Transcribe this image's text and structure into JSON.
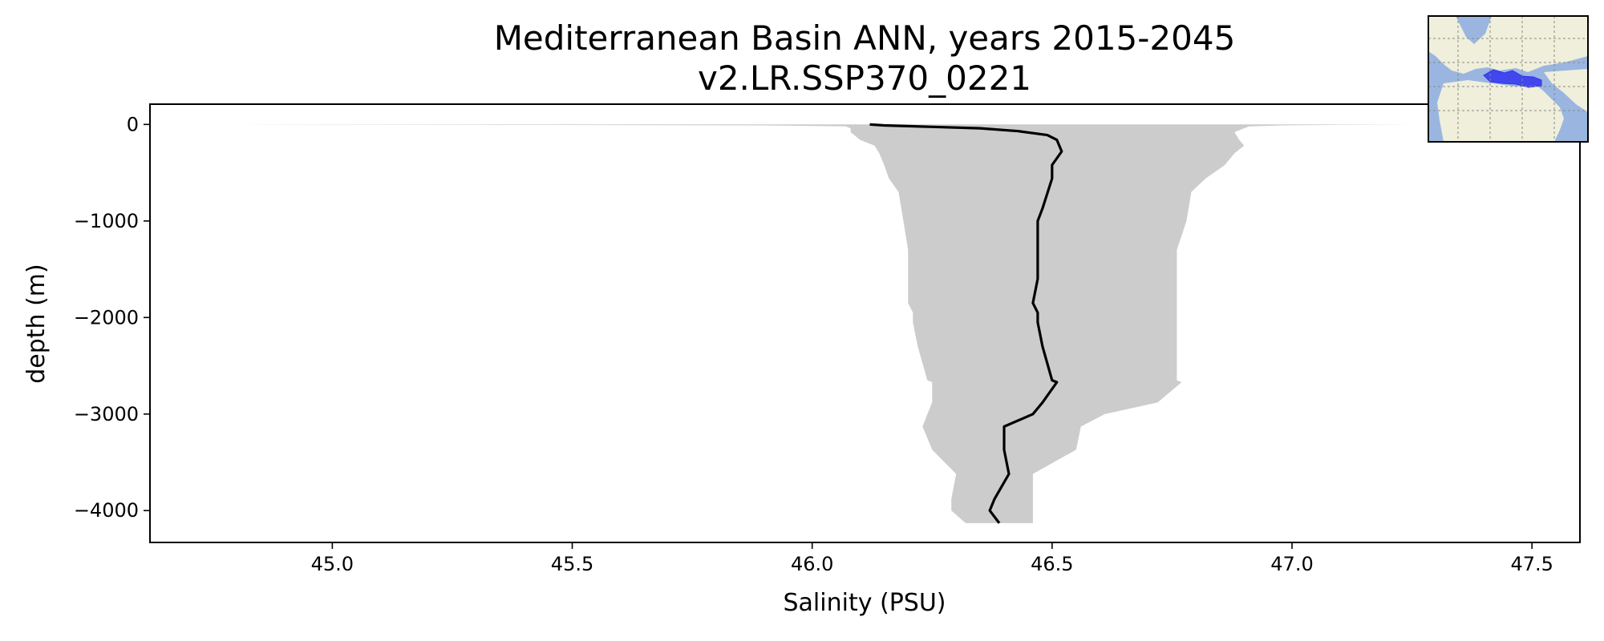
{
  "chart_data": {
    "type": "line",
    "title": "Mediterranean Basin ANN, years 2015-2045",
    "subtitle": "v2.LR.SSP370_0221",
    "xlabel": "Salinity (PSU)",
    "ylabel": "depth (m)",
    "xlim": [
      44.62,
      47.6
    ],
    "ylim": [
      -4330,
      210
    ],
    "xticks": [
      45.0,
      45.5,
      46.0,
      46.5,
      47.0,
      47.5
    ],
    "xtick_labels": [
      "45.0",
      "45.5",
      "46.0",
      "46.5",
      "47.0",
      "47.5"
    ],
    "yticks": [
      0,
      -1000,
      -2000,
      -3000,
      -4000
    ],
    "ytick_labels": [
      "0",
      "−1000",
      "−2000",
      "−3000",
      "−4000"
    ],
    "grid": false,
    "legend": false,
    "series": [
      {
        "kind": "line",
        "color": "#000000",
        "x": [
          46.12,
          46.15,
          46.25,
          46.35,
          46.43,
          46.49,
          46.51,
          46.52,
          46.51,
          46.5,
          46.5,
          46.48,
          46.47,
          46.47,
          46.47,
          46.46,
          46.47,
          46.47,
          46.48,
          46.5,
          46.51,
          46.48,
          46.46,
          46.4,
          46.4,
          46.41,
          46.38,
          46.37,
          46.39
        ],
        "y": [
          0,
          -10,
          -25,
          -40,
          -70,
          -110,
          -160,
          -280,
          -350,
          -420,
          -560,
          -870,
          -1000,
          -1300,
          -1600,
          -1850,
          -1950,
          -2050,
          -2300,
          -2650,
          -2670,
          -2880,
          -3000,
          -3130,
          -3370,
          -3620,
          -3880,
          -4000,
          -4130
        ]
      },
      {
        "kind": "band",
        "color": "#cccccc",
        "y": [
          0,
          -5,
          -10,
          -20,
          -40,
          -80,
          -160,
          -220,
          -300,
          -420,
          -560,
          -700,
          -1000,
          -1300,
          -1500,
          -1850,
          -1950,
          -2050,
          -2300,
          -2650,
          -2670,
          -2880,
          -3000,
          -3130,
          -3370,
          -3620,
          -3880,
          -4000,
          -4130
        ],
        "lower": [
          44.78,
          45.4,
          45.9,
          46.07,
          46.08,
          46.08,
          46.1,
          46.13,
          46.14,
          46.15,
          46.16,
          46.18,
          46.19,
          46.2,
          46.2,
          46.2,
          46.21,
          46.21,
          46.22,
          46.24,
          46.25,
          46.25,
          46.24,
          46.23,
          46.25,
          46.3,
          46.29,
          46.29,
          46.32
        ],
        "upper": [
          47.25,
          47.08,
          46.98,
          46.91,
          46.9,
          46.88,
          46.89,
          46.9,
          46.88,
          46.86,
          46.82,
          46.79,
          46.78,
          46.76,
          46.76,
          46.76,
          46.76,
          46.76,
          46.76,
          46.76,
          46.77,
          46.72,
          46.61,
          46.56,
          46.55,
          46.46,
          46.46,
          46.46,
          46.46
        ]
      }
    ],
    "inset_map": {
      "ocean_color": "#9ab6e0",
      "land_color": "#efefdc",
      "region_color": "#3333ee",
      "grid_line_color": "#888888"
    }
  }
}
